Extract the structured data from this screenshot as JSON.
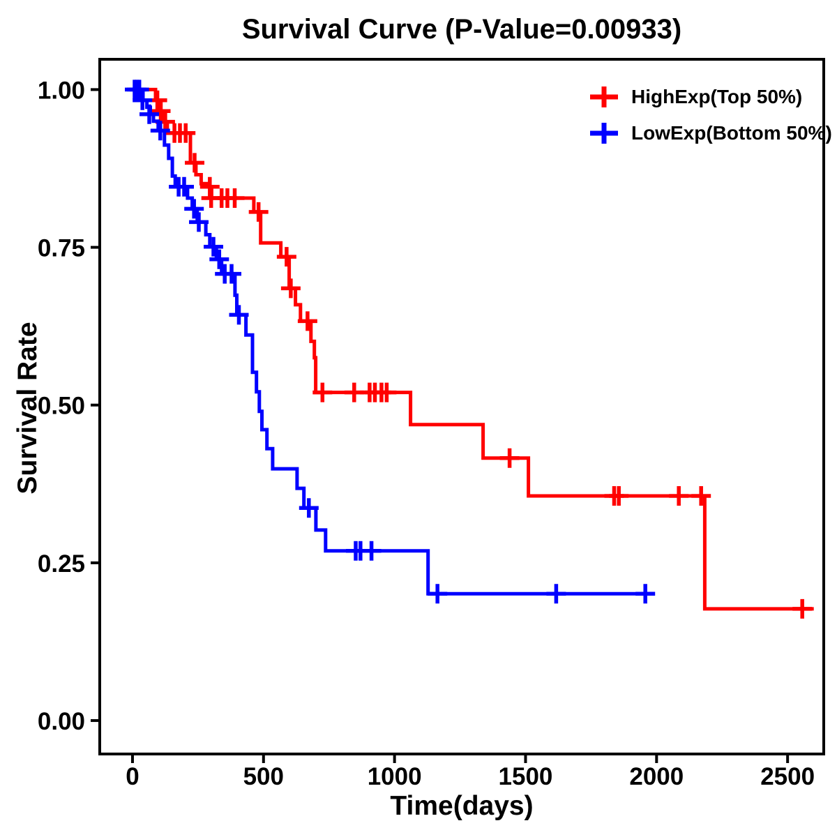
{
  "chart_data": {
    "type": "line",
    "chart_style": "kaplan-meier-survival-step",
    "title": "Survival Curve (P-Value=0.00933)",
    "p_value": 0.00933,
    "xlabel": "Time(days)",
    "ylabel": "Survival Rate",
    "x_ticks": [
      0,
      500,
      1000,
      1500,
      2000,
      2500
    ],
    "x_tick_labels": [
      "0",
      "500",
      "1000",
      "1500",
      "2000",
      "2500"
    ],
    "y_ticks": [
      0,
      0.25,
      0.5,
      0.75,
      1
    ],
    "y_tick_labels": [
      "0.00",
      "0.25",
      "0.50",
      "0.75",
      "1.00"
    ],
    "xlim": [
      -125,
      2638
    ],
    "ylim": [
      -0.053,
      1.048
    ],
    "grid": false,
    "legend_position": "top-right-inside",
    "axis_color": "#000000",
    "background_color": "#FFFFFF",
    "series": [
      {
        "key": "highexp",
        "name": "HighExp(Top 50%)",
        "color": "#FF0000",
        "marker": "plus-censor",
        "steps": [
          [
            0,
            1.0
          ],
          [
            88,
            0.983
          ],
          [
            103,
            0.966
          ],
          [
            114,
            0.949
          ],
          [
            133,
            0.931
          ],
          [
            221,
            0.884
          ],
          [
            242,
            0.865
          ],
          [
            262,
            0.851
          ],
          [
            287,
            0.846
          ],
          [
            302,
            0.828
          ],
          [
            463,
            0.806
          ],
          [
            489,
            0.757
          ],
          [
            566,
            0.735
          ],
          [
            598,
            0.685
          ],
          [
            622,
            0.659
          ],
          [
            641,
            0.633
          ],
          [
            681,
            0.601
          ],
          [
            694,
            0.575
          ],
          [
            699,
            0.52
          ],
          [
            1061,
            0.469
          ],
          [
            1338,
            0.416
          ],
          [
            1511,
            0.356
          ],
          [
            2184,
            0.177
          ]
        ],
        "end_time": 2600,
        "censors": [
          [
            95,
            0.983
          ],
          [
            108,
            0.966
          ],
          [
            125,
            0.949
          ],
          [
            160,
            0.931
          ],
          [
            181,
            0.931
          ],
          [
            203,
            0.931
          ],
          [
            237,
            0.884
          ],
          [
            295,
            0.846
          ],
          [
            300,
            0.828
          ],
          [
            340,
            0.828
          ],
          [
            362,
            0.828
          ],
          [
            390,
            0.828
          ],
          [
            481,
            0.806
          ],
          [
            588,
            0.735
          ],
          [
            604,
            0.685
          ],
          [
            668,
            0.633
          ],
          [
            725,
            0.52
          ],
          [
            846,
            0.52
          ],
          [
            905,
            0.52
          ],
          [
            925,
            0.52
          ],
          [
            950,
            0.52
          ],
          [
            970,
            0.52
          ],
          [
            1439,
            0.416
          ],
          [
            1838,
            0.356
          ],
          [
            1856,
            0.356
          ],
          [
            2085,
            0.356
          ],
          [
            2170,
            0.356
          ],
          [
            2556,
            0.177
          ]
        ]
      },
      {
        "key": "lowexp",
        "name": "LowExp(Bottom 50%)",
        "color": "#0000FF",
        "marker": "plus-censor",
        "steps": [
          [
            0,
            1.0
          ],
          [
            40,
            0.983
          ],
          [
            55,
            0.972
          ],
          [
            68,
            0.961
          ],
          [
            80,
            0.95
          ],
          [
            98,
            0.935
          ],
          [
            122,
            0.912
          ],
          [
            138,
            0.891
          ],
          [
            152,
            0.863
          ],
          [
            163,
            0.846
          ],
          [
            210,
            0.828
          ],
          [
            228,
            0.811
          ],
          [
            247,
            0.79
          ],
          [
            280,
            0.77
          ],
          [
            295,
            0.751
          ],
          [
            320,
            0.731
          ],
          [
            340,
            0.708
          ],
          [
            391,
            0.674
          ],
          [
            398,
            0.643
          ],
          [
            433,
            0.611
          ],
          [
            458,
            0.552
          ],
          [
            473,
            0.521
          ],
          [
            484,
            0.49
          ],
          [
            494,
            0.461
          ],
          [
            513,
            0.431
          ],
          [
            535,
            0.399
          ],
          [
            628,
            0.368
          ],
          [
            654,
            0.337
          ],
          [
            700,
            0.302
          ],
          [
            737,
            0.269
          ],
          [
            1128,
            0.201
          ]
        ],
        "end_time": 1970,
        "censors": [
          [
            8,
            1.0
          ],
          [
            16,
            1.0
          ],
          [
            26,
            1.0
          ],
          [
            38,
            0.983
          ],
          [
            64,
            0.961
          ],
          [
            106,
            0.935
          ],
          [
            176,
            0.846
          ],
          [
            197,
            0.846
          ],
          [
            235,
            0.811
          ],
          [
            253,
            0.79
          ],
          [
            309,
            0.751
          ],
          [
            331,
            0.731
          ],
          [
            352,
            0.708
          ],
          [
            378,
            0.708
          ],
          [
            406,
            0.643
          ],
          [
            673,
            0.337
          ],
          [
            852,
            0.269
          ],
          [
            870,
            0.269
          ],
          [
            912,
            0.269
          ],
          [
            1164,
            0.201
          ],
          [
            1617,
            0.201
          ],
          [
            1957,
            0.201
          ]
        ]
      }
    ]
  }
}
